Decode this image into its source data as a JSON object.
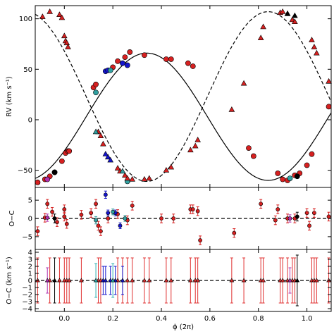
{
  "chart_data": [
    {
      "type": "scatter",
      "panel": "radial-velocity",
      "xlim": [
        -0.12,
        1.1
      ],
      "ylim": [
        -67,
        113
      ],
      "x_ticks": [
        0.0,
        0.2,
        0.4,
        0.6,
        0.8,
        1.0
      ],
      "x_tick_labels": [
        "",
        "",
        "",
        "",
        "",
        ""
      ],
      "y_ticks": [
        -50,
        0,
        50,
        100
      ],
      "y_tick_labels": [
        "−50",
        "0",
        "50",
        "100"
      ],
      "ylabel": "RV (km s⁻¹)",
      "grid": false,
      "curves": {
        "primary": {
          "style": "solid",
          "gamma": 3,
          "K": 63,
          "phase_offset": 0.34
        },
        "secondary": {
          "style": "dashed",
          "gamma": 23,
          "K": 84,
          "phase_offset": 0.84
        }
      },
      "series": [
        {
          "marker": "circle",
          "color": "#d62020",
          "points": [
            [
              -0.11,
              -62
            ],
            [
              -0.08,
              -59
            ],
            [
              -0.06,
              -56
            ],
            [
              -0.04,
              -52
            ],
            [
              -0.01,
              -41
            ],
            [
              0.005,
              -33
            ],
            [
              0.015,
              -31
            ],
            [
              0.02,
              -31
            ],
            [
              0.12,
              32
            ],
            [
              0.13,
              35
            ],
            [
              0.2,
              52
            ],
            [
              0.22,
              58
            ],
            [
              0.25,
              62
            ],
            [
              0.27,
              67
            ],
            [
              0.33,
              64
            ],
            [
              0.42,
              60
            ],
            [
              0.44,
              60
            ],
            [
              0.51,
              56
            ],
            [
              0.53,
              53
            ],
            [
              0.76,
              -28
            ],
            [
              0.78,
              -36
            ],
            [
              0.88,
              -53
            ],
            [
              0.9,
              -59
            ],
            [
              0.92,
              -60
            ],
            [
              0.95,
              -55
            ],
            [
              0.97,
              -53
            ],
            [
              1.0,
              -45
            ],
            [
              1.02,
              -34
            ],
            [
              1.09,
              13
            ]
          ]
        },
        {
          "marker": "circle",
          "color": "#1515cc",
          "points": [
            [
              0.17,
              48
            ],
            [
              0.18,
              49
            ],
            [
              0.24,
              56
            ],
            [
              0.26,
              54
            ]
          ]
        },
        {
          "marker": "circle",
          "color": "#30a0a0",
          "points": [
            [
              0.13,
              27
            ],
            [
              0.19,
              49
            ],
            [
              0.26,
              -61
            ],
            [
              0.93,
              -58
            ]
          ]
        },
        {
          "marker": "circle",
          "color": "#b030b0",
          "points": [
            [
              -0.07,
              -59
            ]
          ]
        },
        {
          "marker": "circle",
          "color": "#000000",
          "points": [
            [
              -0.04,
              -52
            ],
            [
              0.96,
              -56
            ]
          ]
        },
        {
          "marker": "triangle",
          "color": "#d62020",
          "points": [
            [
              -0.09,
              102
            ],
            [
              -0.06,
              107
            ],
            [
              -0.02,
              104
            ],
            [
              -0.01,
              101
            ],
            [
              0.0,
              83
            ],
            [
              0.005,
              78
            ],
            [
              0.01,
              76
            ],
            [
              0.015,
              72
            ],
            [
              0.14,
              -12
            ],
            [
              0.15,
              -16
            ],
            [
              0.16,
              -24
            ],
            [
              0.22,
              -48
            ],
            [
              0.23,
              -51
            ],
            [
              0.25,
              -55
            ],
            [
              0.26,
              -58
            ],
            [
              0.28,
              -59
            ],
            [
              0.33,
              -59
            ],
            [
              0.35,
              -58
            ],
            [
              0.42,
              -50
            ],
            [
              0.44,
              -47
            ],
            [
              0.52,
              -30
            ],
            [
              0.54,
              -26
            ],
            [
              0.55,
              -20
            ],
            [
              0.69,
              10
            ],
            [
              0.74,
              36
            ],
            [
              0.81,
              81
            ],
            [
              0.82,
              92
            ],
            [
              0.89,
              106
            ],
            [
              0.9,
              107
            ],
            [
              0.92,
              105
            ],
            [
              0.94,
              99
            ],
            [
              0.95,
              97
            ],
            [
              1.02,
              79
            ],
            [
              1.03,
              72
            ],
            [
              1.04,
              66
            ],
            [
              1.09,
              38
            ]
          ]
        },
        {
          "marker": "triangle",
          "color": "#1515cc",
          "points": [
            [
              0.17,
              -34
            ],
            [
              0.18,
              -37
            ],
            [
              0.19,
              -40
            ]
          ]
        },
        {
          "marker": "triangle",
          "color": "#30a0a0",
          "points": [
            [
              0.13,
              -12
            ],
            [
              0.24,
              -51
            ]
          ]
        },
        {
          "marker": "triangle",
          "color": "#000000",
          "points": [
            [
              0.92,
              105
            ],
            [
              0.95,
              103
            ]
          ]
        }
      ]
    },
    {
      "type": "scatter",
      "panel": "primary-residuals",
      "xlim": [
        -0.12,
        1.1
      ],
      "ylim": [
        -8.5,
        8.5
      ],
      "x_ticks": [
        0.0,
        0.2,
        0.4,
        0.6,
        0.8,
        1.0
      ],
      "x_tick_labels": [
        "",
        "",
        "",
        "",
        "",
        ""
      ],
      "y_ticks": [
        -5,
        0,
        5
      ],
      "y_tick_labels": [
        "−5",
        "0",
        "5"
      ],
      "ylabel": "O−C",
      "zero_line": "dashed",
      "grid": false,
      "series": [
        {
          "marker": "circle",
          "color": "#d62020",
          "points": [
            [
              -0.11,
              -3.5,
              1.2
            ],
            [
              -0.08,
              0.2,
              1.2
            ],
            [
              -0.07,
              4,
              1.2
            ],
            [
              -0.05,
              1.8,
              1.2
            ],
            [
              -0.03,
              -1,
              1.2
            ],
            [
              0.0,
              0.5,
              1.2
            ],
            [
              0.0,
              2.5,
              1.2
            ],
            [
              0.01,
              -1.5,
              1.2
            ],
            [
              0.07,
              1,
              1.2
            ],
            [
              0.11,
              1.5,
              1.2
            ],
            [
              0.13,
              4,
              1.2
            ],
            [
              0.14,
              -2,
              1.2
            ],
            [
              0.15,
              -3.5,
              1.2
            ],
            [
              0.18,
              0,
              1.2
            ],
            [
              0.22,
              1.2,
              1.2
            ],
            [
              0.26,
              -0.5,
              1.2
            ],
            [
              0.28,
              3.5,
              1.2
            ],
            [
              0.4,
              0,
              1.2
            ],
            [
              0.45,
              0,
              1.2
            ],
            [
              0.52,
              2.5,
              1.2
            ],
            [
              0.53,
              2.5,
              1.2
            ],
            [
              0.55,
              2,
              1.2
            ],
            [
              0.56,
              -6,
              1.2
            ],
            [
              0.7,
              -4,
              1.2
            ],
            [
              0.81,
              4,
              1.2
            ],
            [
              0.87,
              -0.5,
              1.2
            ],
            [
              0.88,
              2.5,
              1.2
            ],
            [
              0.92,
              0,
              1.2
            ],
            [
              0.95,
              0,
              1.2
            ],
            [
              1.0,
              1.5,
              1.2
            ],
            [
              1.01,
              -2,
              1.2
            ],
            [
              1.03,
              1.5,
              1.2
            ],
            [
              1.09,
              0.5,
              1.2
            ]
          ]
        },
        {
          "marker": "circle",
          "color": "#1515cc",
          "points": [
            [
              0.17,
              6.5,
              1.0
            ],
            [
              0.18,
              1.5,
              0.8
            ],
            [
              0.21,
              1.5,
              0.8
            ],
            [
              0.23,
              -2,
              0.8
            ]
          ]
        },
        {
          "marker": "circle",
          "color": "#30a0a0",
          "points": [
            [
              0.13,
              -0.5,
              1.0
            ],
            [
              0.2,
              1.8,
              0.8
            ],
            [
              0.25,
              0,
              0.8
            ]
          ]
        },
        {
          "marker": "circle",
          "color": "#b030b0",
          "points": [
            [
              -0.07,
              0.2,
              1.0
            ],
            [
              0.93,
              0,
              1.0
            ]
          ]
        },
        {
          "marker": "circle",
          "color": "#000000",
          "points": [
            [
              -0.04,
              0,
              1.2
            ],
            [
              0.96,
              0.5,
              1.2
            ]
          ]
        }
      ]
    },
    {
      "type": "scatter",
      "panel": "secondary-residuals",
      "xlim": [
        -0.12,
        1.1
      ],
      "ylim": [
        -4.4,
        4.4
      ],
      "x_ticks": [
        0.0,
        0.2,
        0.4,
        0.6,
        0.8,
        1.0
      ],
      "x_tick_labels": [
        "0.0",
        "0.2",
        "0.4",
        "0.6",
        "0.8",
        "1.0"
      ],
      "y_ticks": [
        -4,
        -3,
        -2,
        -1,
        0,
        1,
        2,
        3,
        4
      ],
      "y_tick_labels": [
        "−4",
        "−3",
        "−2",
        "−1",
        "0",
        "1",
        "2",
        "3",
        "4"
      ],
      "ylabel": "O−C (km s⁻¹)",
      "xlabel": "ϕ (2π)",
      "zero_line": "dashed",
      "grid": false,
      "series": [
        {
          "marker": "triangle",
          "color": "#e03030",
          "points": [
            [
              -0.11,
              0,
              3.2
            ],
            [
              -0.06,
              0,
              3.2
            ],
            [
              -0.02,
              0,
              3.2
            ],
            [
              0.0,
              0,
              3.2
            ],
            [
              0.01,
              0,
              3.2
            ],
            [
              0.02,
              0,
              3.2
            ],
            [
              0.07,
              0,
              3.2
            ],
            [
              0.14,
              0,
              3.2
            ],
            [
              0.15,
              0,
              3.2
            ],
            [
              0.22,
              0,
              3.2
            ],
            [
              0.24,
              0,
              3.2
            ],
            [
              0.26,
              0,
              3.2
            ],
            [
              0.28,
              0,
              3.2
            ],
            [
              0.33,
              0,
              3.2
            ],
            [
              0.35,
              0,
              3.2
            ],
            [
              0.42,
              0,
              3.2
            ],
            [
              0.44,
              0,
              3.2
            ],
            [
              0.52,
              0,
              3.2
            ],
            [
              0.54,
              0,
              3.2
            ],
            [
              0.55,
              0,
              3.2
            ],
            [
              0.69,
              0,
              3.2
            ],
            [
              0.74,
              0,
              3.2
            ],
            [
              0.81,
              0,
              3.2
            ],
            [
              0.82,
              0,
              3.2
            ],
            [
              0.89,
              0,
              3.2
            ],
            [
              0.9,
              0,
              3.2
            ],
            [
              0.92,
              0,
              3.2
            ],
            [
              0.94,
              0,
              3.2
            ],
            [
              0.95,
              0,
              3.2
            ],
            [
              1.02,
              0,
              3.2
            ],
            [
              1.03,
              0,
              3.2
            ],
            [
              1.04,
              0,
              3.2
            ],
            [
              1.09,
              0,
              3.2
            ]
          ]
        },
        {
          "marker": "triangle",
          "color": "#1515cc",
          "points": [
            [
              0.16,
              0,
              2.0
            ],
            [
              0.17,
              0,
              2.0
            ],
            [
              0.19,
              0,
              2.0
            ],
            [
              0.21,
              0,
              2.0
            ],
            [
              0.24,
              0,
              2.0
            ]
          ]
        },
        {
          "marker": "triangle",
          "color": "#30b0b0",
          "points": [
            [
              0.13,
              0,
              2.4
            ],
            [
              0.2,
              0,
              2.4
            ]
          ]
        },
        {
          "marker": "triangle",
          "color": "#b030b0",
          "points": [
            [
              -0.07,
              0,
              1.8
            ],
            [
              0.93,
              0,
              1.8
            ]
          ]
        },
        {
          "marker": "triangle",
          "color": "#000000",
          "points": [
            [
              -0.04,
              0,
              3.2
            ],
            [
              0.96,
              0,
              3.6
            ]
          ]
        }
      ]
    }
  ]
}
